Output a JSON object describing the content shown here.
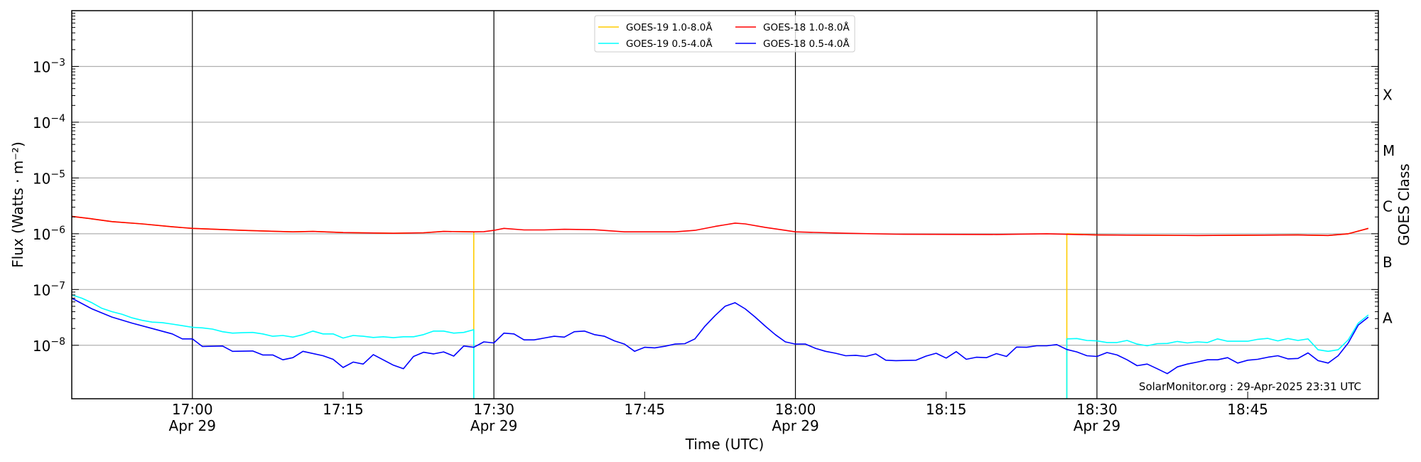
{
  "chart_data": {
    "type": "line",
    "xlabel": "Time (UTC)",
    "ylabel": "Flux (Watts · m⁻²)",
    "ylabel_right": "GOES Class",
    "yscale": "log",
    "xlim": [
      "16:48",
      "18:58"
    ],
    "ylim": [
      1.1e-09,
      0.01
    ],
    "grid": "horizontal at decades",
    "legend_placement": "top-center",
    "watermark": "SolarMonitor.org : 29-Apr-2025 23:31 UTC",
    "y_ticks": [
      {
        "value": 0.001,
        "base": "10",
        "exp": "−3"
      },
      {
        "value": 0.0001,
        "base": "10",
        "exp": "−4"
      },
      {
        "value": 1e-05,
        "base": "10",
        "exp": "−5"
      },
      {
        "value": 1e-06,
        "base": "10",
        "exp": "−6"
      },
      {
        "value": 1e-07,
        "base": "10",
        "exp": "−7"
      },
      {
        "value": 1e-08,
        "base": "10",
        "exp": "−8"
      }
    ],
    "x_ticks": [
      {
        "time": "17:00",
        "label": "17:00",
        "date": "Apr 29",
        "major": true
      },
      {
        "time": "17:15",
        "label": "17:15",
        "date": "",
        "major": false
      },
      {
        "time": "17:30",
        "label": "17:30",
        "date": "Apr 29",
        "major": true
      },
      {
        "time": "17:45",
        "label": "17:45",
        "date": "",
        "major": false
      },
      {
        "time": "18:00",
        "label": "18:00",
        "date": "Apr 29",
        "major": true
      },
      {
        "time": "18:15",
        "label": "18:15",
        "date": "",
        "major": false
      },
      {
        "time": "18:30",
        "label": "18:30",
        "date": "Apr 29",
        "major": true
      },
      {
        "time": "18:45",
        "label": "18:45",
        "date": "",
        "major": false
      }
    ],
    "goes_classes": [
      {
        "label": "X",
        "lower": 0.0001
      },
      {
        "label": "M",
        "lower": 1e-05
      },
      {
        "label": "C",
        "lower": 1e-06
      },
      {
        "label": "B",
        "lower": 1e-07
      },
      {
        "label": "A",
        "lower": 1e-08
      }
    ],
    "series": [
      {
        "name": "GOES-19 1.0-8.0Å",
        "color": "#ffcc00",
        "drops_to_zero_in_gap": true,
        "segments": [
          {
            "t": [
              "16:48",
              "16:50",
              "16:52",
              "16:55",
              "16:58",
              "17:00",
              "17:05",
              "17:10",
              "17:12",
              "17:15",
              "17:20",
              "17:23",
              "17:25",
              "17:28"
            ],
            "v": [
              2.05e-06,
              1.85e-06,
              1.65e-06,
              1.5e-06,
              1.33e-06,
              1.25e-06,
              1.15e-06,
              1.08e-06,
              1.1e-06,
              1.05e-06,
              1.02e-06,
              1.04e-06,
              1.1e-06,
              1.08e-06
            ]
          },
          {
            "t": [
              "18:27",
              "18:30",
              "18:40",
              "18:50",
              "18:53",
              "18:55",
              "18:57"
            ],
            "v": [
              1e-06,
              9.5e-07,
              9.3e-07,
              9.5e-07,
              9.3e-07,
              1e-06,
              1.25e-06
            ]
          }
        ]
      },
      {
        "name": "GOES-18 1.0-8.0Å",
        "color": "#ff0000",
        "segments": [
          {
            "t": [
              "16:48",
              "16:50",
              "16:52",
              "16:55",
              "16:58",
              "17:00",
              "17:05",
              "17:10",
              "17:12",
              "17:15",
              "17:20",
              "17:23",
              "17:25",
              "17:28",
              "17:29",
              "17:30",
              "17:31",
              "17:33",
              "17:35",
              "17:37",
              "17:40",
              "17:43",
              "17:46",
              "17:48",
              "17:50",
              "17:52",
              "17:54",
              "17:55",
              "17:57",
              "17:59",
              "18:00",
              "18:05",
              "18:10",
              "18:20",
              "18:25",
              "18:30",
              "18:40",
              "18:50",
              "18:53",
              "18:55",
              "18:57"
            ],
            "v": [
              2.05e-06,
              1.85e-06,
              1.65e-06,
              1.5e-06,
              1.33e-06,
              1.25e-06,
              1.15e-06,
              1.08e-06,
              1.1e-06,
              1.05e-06,
              1.02e-06,
              1.04e-06,
              1.1e-06,
              1.08e-06,
              1.09e-06,
              1.15e-06,
              1.25e-06,
              1.17e-06,
              1.17e-06,
              1.2e-06,
              1.18e-06,
              1.08e-06,
              1.08e-06,
              1.08e-06,
              1.15e-06,
              1.35e-06,
              1.55e-06,
              1.5e-06,
              1.3e-06,
              1.15e-06,
              1.08e-06,
              1.02e-06,
              9.8e-07,
              9.7e-07,
              1e-06,
              9.5e-07,
              9.3e-07,
              9.5e-07,
              9.3e-07,
              1e-06,
              1.25e-06
            ]
          }
        ]
      },
      {
        "name": "GOES-19 0.5-4.0Å",
        "color": "#00ffff",
        "drops_to_zero_in_gap": true,
        "segments": [
          {
            "t": [
              "16:48",
              "16:49",
              "16:50",
              "16:51",
              "16:52",
              "16:53",
              "16:54",
              "16:55",
              "16:56",
              "16:57",
              "16:58",
              "16:59",
              "17:00",
              "17:01",
              "17:02",
              "17:03",
              "17:04",
              "17:05",
              "17:06",
              "17:07",
              "17:08",
              "17:09",
              "17:10",
              "17:11",
              "17:12",
              "17:13",
              "17:14",
              "17:15",
              "17:16",
              "17:17",
              "17:18",
              "17:19",
              "17:20",
              "17:21",
              "17:22",
              "17:23",
              "17:24",
              "17:25",
              "17:26",
              "17:27",
              "17:28"
            ],
            "v": [
              8e-08,
              7e-08,
              5.8e-08,
              4.6e-08,
              4e-08,
              3.6e-08,
              3.1e-08,
              2.8e-08,
              2.6e-08,
              2.55e-08,
              2.4e-08,
              2.25e-08,
              2.1e-08,
              2.05e-08,
              1.95e-08,
              1.75e-08,
              1.65e-08,
              1.68e-08,
              1.7e-08,
              1.6e-08,
              1.45e-08,
              1.5e-08,
              1.4e-08,
              1.55e-08,
              1.8e-08,
              1.6e-08,
              1.6e-08,
              1.35e-08,
              1.5e-08,
              1.45e-08,
              1.38e-08,
              1.42e-08,
              1.37e-08,
              1.42e-08,
              1.42e-08,
              1.55e-08,
              1.8e-08,
              1.8e-08,
              1.65e-08,
              1.7e-08,
              1.9e-08
            ]
          },
          {
            "t": [
              "18:27",
              "18:28",
              "18:29",
              "18:30",
              "18:31",
              "18:32",
              "18:33",
              "18:34",
              "18:35",
              "18:36",
              "18:37",
              "18:38",
              "18:39",
              "18:40",
              "18:41",
              "18:42",
              "18:43",
              "18:44",
              "18:45",
              "18:46",
              "18:47",
              "18:48",
              "18:49",
              "18:50",
              "18:51",
              "18:52",
              "18:53",
              "18:54",
              "18:55",
              "18:56",
              "18:57"
            ],
            "v": [
              1.3e-08,
              1.32e-08,
              1.22e-08,
              1.2e-08,
              1.12e-08,
              1.12e-08,
              1.22e-08,
              1.05e-08,
              9.8e-09,
              1.07e-08,
              1.08e-08,
              1.17e-08,
              1.1e-08,
              1.15e-08,
              1.12e-08,
              1.3e-08,
              1.18e-08,
              1.18e-08,
              1.18e-08,
              1.28e-08,
              1.33e-08,
              1.2e-08,
              1.32e-08,
              1.22e-08,
              1.3e-08,
              8.3e-09,
              7.8e-09,
              8.3e-09,
              1.25e-08,
              2.5e-08,
              3.5e-08
            ]
          }
        ]
      },
      {
        "name": "GOES-18 0.5-4.0Å",
        "color": "#0000ff",
        "segments": [
          {
            "t": [
              "16:48",
              "16:50",
              "16:52",
              "16:54",
              "16:56",
              "16:58",
              "16:59",
              "17:00",
              "17:01",
              "17:03",
              "17:04",
              "17:06",
              "17:07",
              "17:08",
              "17:09",
              "17:10",
              "17:11",
              "17:13",
              "17:14",
              "17:15",
              "17:16",
              "17:17",
              "17:18",
              "17:20",
              "17:21",
              "17:22",
              "17:23",
              "17:24",
              "17:25",
              "17:26",
              "17:27",
              "17:28",
              "17:29",
              "17:30",
              "17:31",
              "17:32",
              "17:33",
              "17:34",
              "17:35",
              "17:36",
              "17:37",
              "17:38",
              "17:39",
              "17:40",
              "17:41",
              "17:42",
              "17:43",
              "17:44",
              "17:45",
              "17:46",
              "17:47",
              "17:48",
              "17:49",
              "17:50",
              "17:51",
              "17:52",
              "17:53",
              "17:54",
              "17:55",
              "17:56",
              "17:57",
              "17:58",
              "17:59",
              "18:00",
              "18:01",
              "18:02",
              "18:03",
              "18:04",
              "18:05",
              "18:06",
              "18:07",
              "18:08",
              "18:09",
              "18:10",
              "18:12",
              "18:13",
              "18:14",
              "18:15",
              "18:16",
              "18:17",
              "18:18",
              "18:19",
              "18:20",
              "18:21",
              "18:22",
              "18:23",
              "18:24",
              "18:25",
              "18:26",
              "18:27",
              "18:28",
              "18:29",
              "18:30",
              "18:31",
              "18:32",
              "18:33",
              "18:34",
              "18:35",
              "18:36",
              "18:37",
              "18:38",
              "18:39",
              "18:40",
              "18:41",
              "18:42",
              "18:43",
              "18:44",
              "18:45",
              "18:46",
              "18:47",
              "18:48",
              "18:49",
              "18:50",
              "18:51",
              "18:52",
              "18:53",
              "18:54",
              "18:55",
              "18:56",
              "18:57"
            ],
            "v": [
              7e-08,
              4.5e-08,
              3.2e-08,
              2.5e-08,
              2e-08,
              1.6e-08,
              1.3e-08,
              1.3e-08,
              9.5e-09,
              9.7e-09,
              7.8e-09,
              7.9e-09,
              6.7e-09,
              6.7e-09,
              5.5e-09,
              6e-09,
              7.8e-09,
              6.5e-09,
              5.6e-09,
              4e-09,
              5e-09,
              4.6e-09,
              6.8e-09,
              4.4e-09,
              3.8e-09,
              6.3e-09,
              7.5e-09,
              7e-09,
              7.6e-09,
              6.4e-09,
              9.7e-09,
              9.2e-09,
              1.15e-08,
              1.1e-08,
              1.65e-08,
              1.6e-08,
              1.25e-08,
              1.25e-08,
              1.35e-08,
              1.45e-08,
              1.4e-08,
              1.75e-08,
              1.8e-08,
              1.55e-08,
              1.45e-08,
              1.2e-08,
              1.05e-08,
              7.8e-09,
              9.2e-09,
              9e-09,
              9.6e-09,
              1.05e-08,
              1.07e-08,
              1.3e-08,
              2.2e-08,
              3.4e-08,
              5e-08,
              5.8e-08,
              4.5e-08,
              3.2e-08,
              2.2e-08,
              1.55e-08,
              1.15e-08,
              1.05e-08,
              1.05e-08,
              8.8e-09,
              7.8e-09,
              7.2e-09,
              6.5e-09,
              6.6e-09,
              6.3e-09,
              7e-09,
              5.4e-09,
              5.3e-09,
              5.4e-09,
              6.4e-09,
              7.2e-09,
              5.9e-09,
              7.7e-09,
              5.6e-09,
              6.1e-09,
              6e-09,
              7.1e-09,
              6.3e-09,
              9.3e-09,
              9.2e-09,
              9.8e-09,
              9.8e-09,
              1.03e-08,
              8.4e-09,
              7.6e-09,
              6.5e-09,
              6.3e-09,
              7.4e-09,
              6.7e-09,
              5.5e-09,
              4.3e-09,
              4.6e-09,
              3.8e-09,
              3.1e-09,
              4.1e-09,
              4.6e-09,
              5e-09,
              5.5e-09,
              5.5e-09,
              6e-09,
              4.8e-09,
              5.4e-09,
              5.6e-09,
              6.1e-09,
              6.5e-09,
              5.7e-09,
              5.8e-09,
              7.3e-09,
              5.3e-09,
              4.8e-09,
              6.5e-09,
              1.1e-08,
              2.3e-08,
              3.2e-08
            ]
          }
        ]
      }
    ],
    "legend_order": [
      0,
      2,
      1,
      3
    ]
  }
}
